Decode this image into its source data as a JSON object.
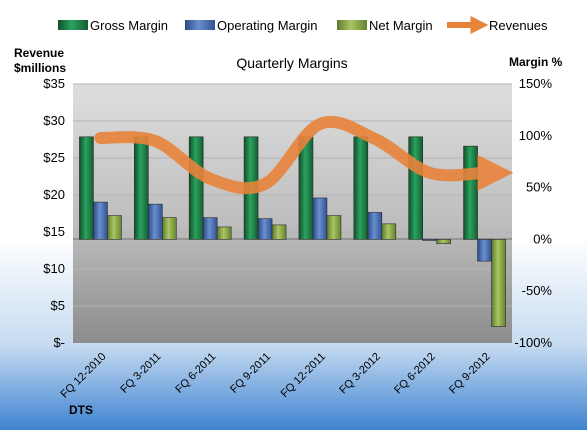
{
  "chart_data": {
    "type": "bar",
    "title": "Quarterly Margins",
    "company": "DTS",
    "categories": [
      "FQ 12-2010",
      "FQ 3-2011",
      "FQ 6-2011",
      "FQ 9-2011",
      "FQ 12-2011",
      "FQ 3-2012",
      "FQ 6-2012",
      "FQ 9-2012"
    ],
    "left_axis": {
      "label_line1": "Revenue",
      "label_line2": "$millions",
      "min": 0,
      "max": 35,
      "step": 5,
      "ticks": [
        "$-",
        "$5",
        "$10",
        "$15",
        "$20",
        "$25",
        "$30",
        "$35"
      ]
    },
    "right_axis": {
      "label": "Margin %",
      "min": -100,
      "max": 150,
      "step": 50,
      "ticks": [
        "-100%",
        "-50%",
        "0%",
        "50%",
        "100%",
        "150%"
      ]
    },
    "legend_placement": "top",
    "series": [
      {
        "name": "Gross Margin",
        "axis": "right",
        "type": "bar",
        "color": "#1e8449",
        "values": [
          99,
          99,
          99,
          99,
          99,
          99,
          99,
          90
        ]
      },
      {
        "name": "Operating Margin",
        "axis": "right",
        "type": "bar",
        "color": "#4a6fb0",
        "values": [
          36,
          34,
          21,
          20,
          40,
          26,
          -1,
          -21
        ]
      },
      {
        "name": "Net Margin",
        "axis": "right",
        "type": "bar",
        "color": "#8aaa45",
        "values": [
          23,
          21,
          12,
          14,
          23,
          15,
          -4,
          -84
        ]
      },
      {
        "name": "Revenues",
        "axis": "left",
        "type": "line",
        "color": "#e8833a",
        "values": [
          27.7,
          27.3,
          22.2,
          21.5,
          29.6,
          27.6,
          23.0,
          23.0
        ]
      }
    ]
  }
}
